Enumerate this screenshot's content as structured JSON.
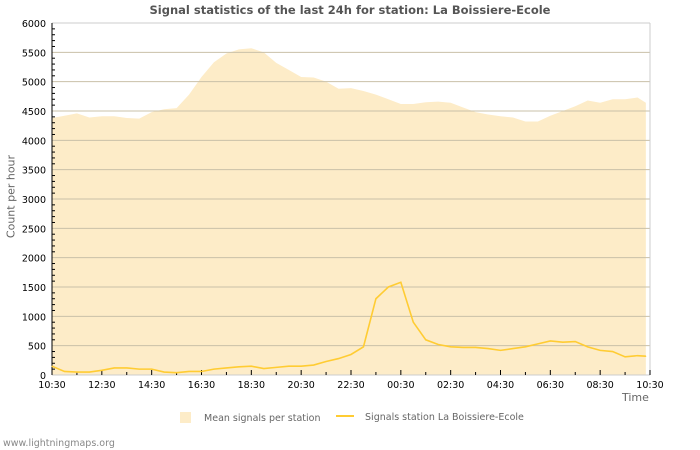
{
  "chart_data": {
    "type": "area",
    "title": "Signal statistics of the last 24h for station: La Boissiere-Ecole",
    "xlabel": "Time",
    "ylabel": "Count per hour",
    "ylim": [
      0,
      6000
    ],
    "yticks": [
      "0",
      "500",
      "1000",
      "1500",
      "2000",
      "2500",
      "3000",
      "3500",
      "4000",
      "4500",
      "5000",
      "5500",
      "6000"
    ],
    "xticks": [
      "10:30",
      "12:30",
      "14:30",
      "16:30",
      "18:30",
      "20:30",
      "22:30",
      "00:30",
      "02:30",
      "04:30",
      "06:30",
      "08:30",
      "10:30"
    ],
    "x": [
      "10:30",
      "11:00",
      "11:30",
      "12:00",
      "12:30",
      "13:00",
      "13:30",
      "14:00",
      "14:30",
      "15:00",
      "15:30",
      "16:00",
      "16:30",
      "17:00",
      "17:30",
      "18:00",
      "18:30",
      "19:00",
      "19:30",
      "20:00",
      "20:30",
      "21:00",
      "21:30",
      "22:00",
      "22:30",
      "23:00",
      "23:30",
      "00:00",
      "00:30",
      "01:00",
      "01:30",
      "02:00",
      "02:30",
      "03:00",
      "03:30",
      "04:00",
      "04:30",
      "05:00",
      "05:30",
      "06:00",
      "06:30",
      "07:00",
      "07:30",
      "08:00",
      "08:30",
      "09:00",
      "09:30",
      "10:00",
      "10:20"
    ],
    "series": [
      {
        "name": "Mean signals per station",
        "kind": "area",
        "color": "#fdecc8",
        "values": [
          4380,
          4420,
          4460,
          4390,
          4410,
          4410,
          4380,
          4370,
          4480,
          4530,
          4550,
          4780,
          5080,
          5330,
          5480,
          5550,
          5570,
          5500,
          5320,
          5200,
          5080,
          5070,
          5000,
          4880,
          4890,
          4840,
          4780,
          4700,
          4620,
          4620,
          4650,
          4660,
          4640,
          4560,
          4480,
          4440,
          4410,
          4390,
          4320,
          4320,
          4420,
          4500,
          4580,
          4680,
          4640,
          4700,
          4700,
          4730,
          4640
        ]
      },
      {
        "name": "Signals station La Boissiere-Ecole",
        "kind": "line",
        "color": "#ffcc33",
        "values": [
          150,
          60,
          50,
          50,
          80,
          120,
          120,
          100,
          100,
          50,
          40,
          60,
          60,
          100,
          120,
          140,
          150,
          110,
          130,
          150,
          150,
          170,
          230,
          280,
          350,
          480,
          1300,
          1500,
          1580,
          900,
          600,
          520,
          480,
          470,
          470,
          450,
          420,
          450,
          480,
          530,
          580,
          560,
          570,
          480,
          420,
          400,
          310,
          330,
          320
        ]
      }
    ],
    "grid": true,
    "legend_position": "bottom"
  },
  "footer": "www.lightningmaps.org"
}
